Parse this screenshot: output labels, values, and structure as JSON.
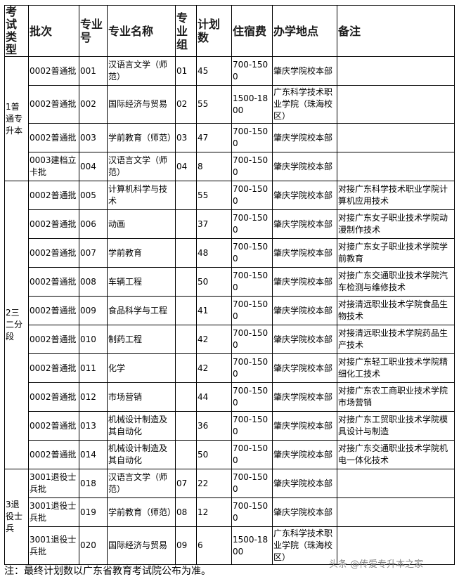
{
  "headers": [
    "考试类型",
    "批次",
    "专业号",
    "专业名称",
    "专业组",
    "计划数",
    "住宿费",
    "办学地点",
    "备注"
  ],
  "groups": [
    {
      "type": "1普通专升本",
      "rows": [
        [
          "0002普通批",
          "001",
          "汉语言文学（师范）",
          "01",
          "45",
          "700-1500",
          "肇庆学院校本部",
          ""
        ],
        [
          "0002普通批",
          "002",
          "国际经济与贸易",
          "02",
          "55",
          "1500-1800",
          "广东科学技术职业学院（珠海校区）",
          ""
        ],
        [
          "0002普通批",
          "003",
          "学前教育（师范）",
          "03",
          "47",
          "700-1500",
          "肇庆学院校本部",
          ""
        ],
        [
          "0003建档立卡批",
          "004",
          "汉语言文学（师范）",
          "04",
          "8",
          "700-1500",
          "肇庆学院校本部",
          ""
        ]
      ]
    },
    {
      "type": "2三二分段",
      "rows": [
        [
          "0002普通批",
          "005",
          "计算机科学与技术",
          "",
          "55",
          "700-1500",
          "肇庆学院校本部",
          "对接广东科学技术职业学院计算机应用技术"
        ],
        [
          "0002普通批",
          "006",
          "动画",
          "",
          "37",
          "700-1500",
          "肇庆学院校本部",
          "对接广东女子职业技术学院动漫制作技术"
        ],
        [
          "0002普通批",
          "007",
          "学前教育",
          "",
          "48",
          "700-1500",
          "肇庆学院校本部",
          "对接广东女子职业技术学院学前教育"
        ],
        [
          "0002普通批",
          "008",
          "车辆工程",
          "",
          "50",
          "700-1500",
          "肇庆学院校本部",
          "对接广东交通职业技术学院汽车检测与维修技术"
        ],
        [
          "0002普通批",
          "009",
          "食品科学与工程",
          "",
          "41",
          "700-1500",
          "肇庆学院校本部",
          "对接清远职业技术学院食品生物技术"
        ],
        [
          "0002普通批",
          "010",
          "制药工程",
          "",
          "42",
          "700-1500",
          "肇庆学院校本部",
          "对接清远职业技术学院药品生产技术"
        ],
        [
          "0002普通批",
          "011",
          "化学",
          "",
          "42",
          "700-1500",
          "肇庆学院校本部",
          "对接广东轻工职业技术学院精细化工技术"
        ],
        [
          "0002普通批",
          "012",
          "市场营销",
          "",
          "44",
          "700-1500",
          "肇庆学院校本部",
          "对接广东农工商职业技术学院市场营销"
        ],
        [
          "0002普通批",
          "013",
          "机械设计制造及其自动化",
          "",
          "36",
          "700-1500",
          "肇庆学院校本部",
          "对接广东工贸职业技术学院模具设计与制造"
        ],
        [
          "0002普通批",
          "014",
          "机械设计制造及其自动化",
          "",
          "50",
          "700-1500",
          "肇庆学院校本部",
          "对接广东交通职业技术学院机电一体化技术"
        ]
      ]
    },
    {
      "type": "3退役士兵",
      "rows": [
        [
          "3001退役士兵批",
          "018",
          "汉语言文学（师范）",
          "07",
          "22",
          "700-1500",
          "肇庆学院校本部",
          ""
        ],
        [
          "3001退役士兵批",
          "019",
          "学前教育（师范）",
          "08",
          "12",
          "700-1500",
          "肇庆学院校本部",
          ""
        ],
        [
          "3001退役士兵批",
          "020",
          "国际经济与贸易",
          "09",
          "6",
          "1500-1800",
          "广东科学技术职业学院（珠海校区）",
          ""
        ]
      ]
    }
  ],
  "footer": "注：最终计划数以广东省教育考试院公布为准。",
  "watermark": "头条 @传爱专升本之家"
}
